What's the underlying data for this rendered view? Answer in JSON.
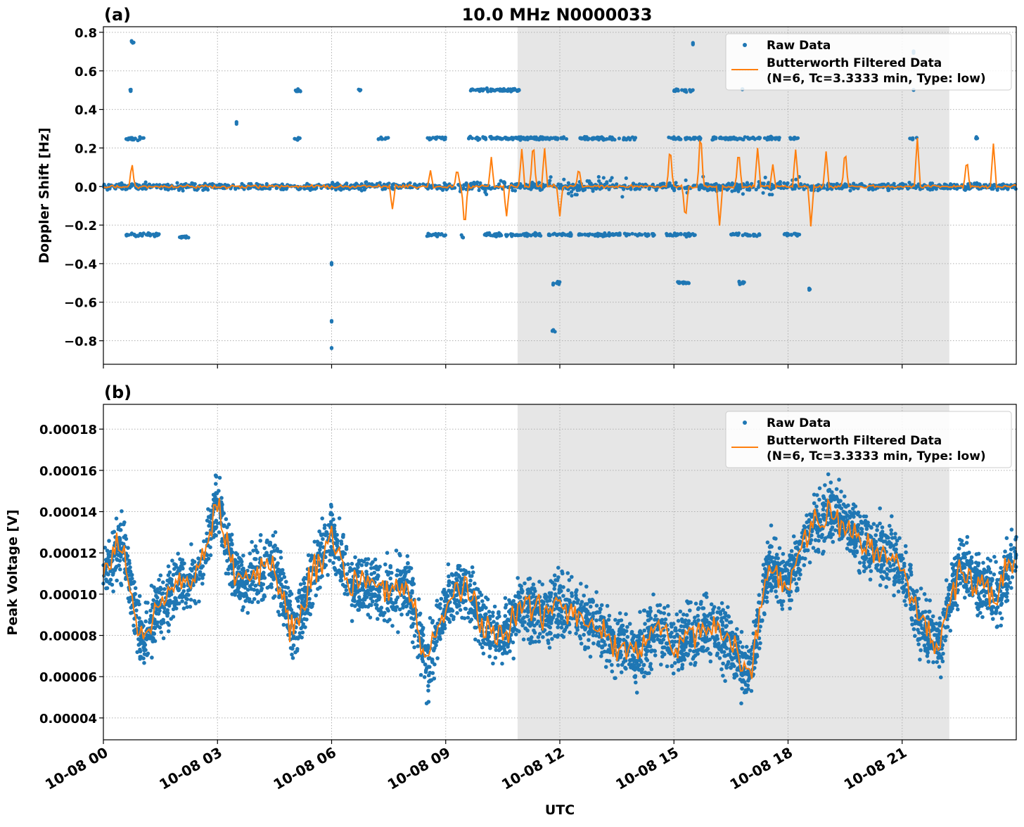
{
  "chart_data": [
    {
      "type": "scatter",
      "panel_label": "(a)",
      "title": "10.0 MHz N0000033",
      "xlabel": "",
      "ylabel": "Doppler Shift [Hz]",
      "xlim_hours": [
        0,
        24
      ],
      "ylim": [
        -0.922,
        0.829
      ],
      "yticks": [
        0.8,
        0.6,
        0.4,
        0.2,
        0.0,
        -0.2,
        -0.4,
        -0.6,
        -0.8
      ],
      "ytick_labels": [
        "0.8",
        "0.6",
        "0.4",
        "0.2",
        "0.0",
        "−0.2",
        "−0.4",
        "−0.6",
        "−0.8"
      ],
      "grid": true,
      "shaded_span_utc": [
        "10-08 10:53",
        "10-08 22:14"
      ],
      "shaded_span_hours": [
        10.89,
        22.24
      ],
      "legend_placement": "upper right",
      "legend": [
        "Raw Data",
        "Butterworth Filtered Data",
        "(N=6, Tc=3.3333 min, Type: low)"
      ],
      "series": [
        {
          "name": "Raw Data",
          "color": "#1f77b4",
          "base_value": 0.0,
          "spread": 0.025,
          "outlier_groups_hour_start_end_value": [
            [
              0.6,
              1.1,
              0.25
            ],
            [
              0.6,
              1.5,
              -0.25
            ],
            [
              0.7,
              0.8,
              0.5
            ],
            [
              0.7,
              0.8,
              0.75
            ],
            [
              2.0,
              2.3,
              -0.26
            ],
            [
              3.5,
              3.5,
              0.33
            ],
            [
              5.0,
              5.2,
              0.25
            ],
            [
              5.0,
              5.2,
              0.5
            ],
            [
              6.0,
              6.0,
              -0.4
            ],
            [
              6.0,
              6.0,
              -0.7
            ],
            [
              6.0,
              6.0,
              -0.84
            ],
            [
              6.7,
              6.8,
              0.5
            ],
            [
              7.2,
              7.5,
              0.25
            ],
            [
              8.5,
              9.0,
              0.25
            ],
            [
              8.5,
              9.0,
              -0.25
            ],
            [
              9.4,
              9.5,
              -0.26
            ],
            [
              9.6,
              11.5,
              0.25
            ],
            [
              9.6,
              11.0,
              0.5
            ],
            [
              10.0,
              11.5,
              -0.25
            ],
            [
              10.9,
              12.2,
              0.25
            ],
            [
              11.7,
              12.3,
              -0.25
            ],
            [
              11.8,
              12.0,
              -0.5
            ],
            [
              11.8,
              11.9,
              -0.75
            ],
            [
              12.5,
              14.0,
              0.25
            ],
            [
              12.5,
              14.5,
              -0.25
            ],
            [
              14.8,
              15.7,
              0.25
            ],
            [
              14.8,
              15.6,
              -0.25
            ],
            [
              15.0,
              15.5,
              0.5
            ],
            [
              15.0,
              15.4,
              -0.5
            ],
            [
              15.5,
              15.5,
              0.74
            ],
            [
              16.0,
              17.8,
              0.25
            ],
            [
              16.5,
              17.3,
              -0.25
            ],
            [
              16.7,
              16.9,
              -0.5
            ],
            [
              16.8,
              16.8,
              0.5
            ],
            [
              18.0,
              18.3,
              0.25
            ],
            [
              17.9,
              18.3,
              -0.25
            ],
            [
              18.5,
              18.6,
              -0.53
            ],
            [
              21.2,
              21.4,
              0.25
            ],
            [
              21.3,
              21.3,
              0.5
            ],
            [
              21.3,
              21.3,
              0.7
            ],
            [
              22.9,
              23.0,
              0.25
            ]
          ]
        },
        {
          "name": "Butterworth Filtered Data",
          "color": "#ff7f0e",
          "base_value": 0.0,
          "spikes_hour_value": [
            [
              0.75,
              0.12
            ],
            [
              7.6,
              -0.12
            ],
            [
              8.6,
              0.08
            ],
            [
              9.3,
              0.1
            ],
            [
              9.5,
              -0.22
            ],
            [
              10.2,
              0.15
            ],
            [
              10.6,
              -0.15
            ],
            [
              11.0,
              0.2
            ],
            [
              11.3,
              0.25
            ],
            [
              11.6,
              0.2
            ],
            [
              12.0,
              -0.15
            ],
            [
              12.5,
              0.1
            ],
            [
              14.9,
              0.22
            ],
            [
              15.3,
              -0.18
            ],
            [
              15.7,
              0.3
            ],
            [
              16.2,
              -0.2
            ],
            [
              16.7,
              0.2
            ],
            [
              17.2,
              0.2
            ],
            [
              17.6,
              0.12
            ],
            [
              18.2,
              0.2
            ],
            [
              18.6,
              -0.2
            ],
            [
              19.0,
              0.18
            ],
            [
              19.5,
              0.2
            ],
            [
              21.4,
              0.25
            ],
            [
              22.7,
              0.15
            ],
            [
              23.4,
              0.22
            ]
          ]
        }
      ]
    },
    {
      "type": "scatter",
      "panel_label": "(b)",
      "xlabel": "UTC",
      "ylabel": "Peak Voltage [V]",
      "xlim_hours": [
        0,
        24
      ],
      "ylim": [
        2.94e-05,
        0.000192
      ],
      "yticks": [
        0.00018,
        0.00016,
        0.00014,
        0.00012,
        0.0001,
        8e-05,
        6e-05,
        4e-05
      ],
      "ytick_labels": [
        "0.00018",
        "0.00016",
        "0.00014",
        "0.00012",
        "0.00010",
        "0.00008",
        "0.00006",
        "0.00004"
      ],
      "xticks_hours": [
        0,
        3,
        6,
        9,
        12,
        15,
        18,
        21
      ],
      "xtick_labels": [
        "10-08 00",
        "10-08 03",
        "10-08 06",
        "10-08 09",
        "10-08 12",
        "10-08 15",
        "10-08 18",
        "10-08 21"
      ],
      "grid": true,
      "shaded_span_utc": [
        "10-08 10:53",
        "10-08 22:14"
      ],
      "shaded_span_hours": [
        10.89,
        22.24
      ],
      "legend_placement": "upper right",
      "legend": [
        "Raw Data",
        "Butterworth Filtered Data",
        "(N=6, Tc=3.3333 min, Type: low)"
      ],
      "series": [
        {
          "name": "Butterworth Filtered Data",
          "color": "#ff7f0e",
          "hours_step": 0.5,
          "values": [
            0.00011,
            0.000125,
            7.5e-05,
            9.5e-05,
            0.000105,
            0.00011,
            0.000145,
            0.000105,
            0.00011,
            0.000115,
            8e-05,
            0.00011,
            0.00013,
            0.000105,
            0.000105,
            0.0001,
            0.000105,
            6.5e-05,
            9.5e-05,
            0.000105,
            8.5e-05,
            8e-05,
            9.5e-05,
            9e-05,
            9.5e-05,
            9e-05,
            8.5e-05,
            7.5e-05,
            7e-05,
            8.5e-05,
            7.5e-05,
            8e-05,
            8.5e-05,
            7.5e-05,
            6e-05,
            0.000115,
            0.000105,
            0.00013,
            0.00014,
            0.000135,
            0.000125,
            0.00012,
            0.000115,
            8.5e-05,
            7.5e-05,
            0.000115,
            0.000105,
            0.0001,
            0.00012
          ]
        },
        {
          "name": "Raw Data",
          "color": "#1f77b4",
          "spread": 2.2e-05
        }
      ]
    }
  ]
}
